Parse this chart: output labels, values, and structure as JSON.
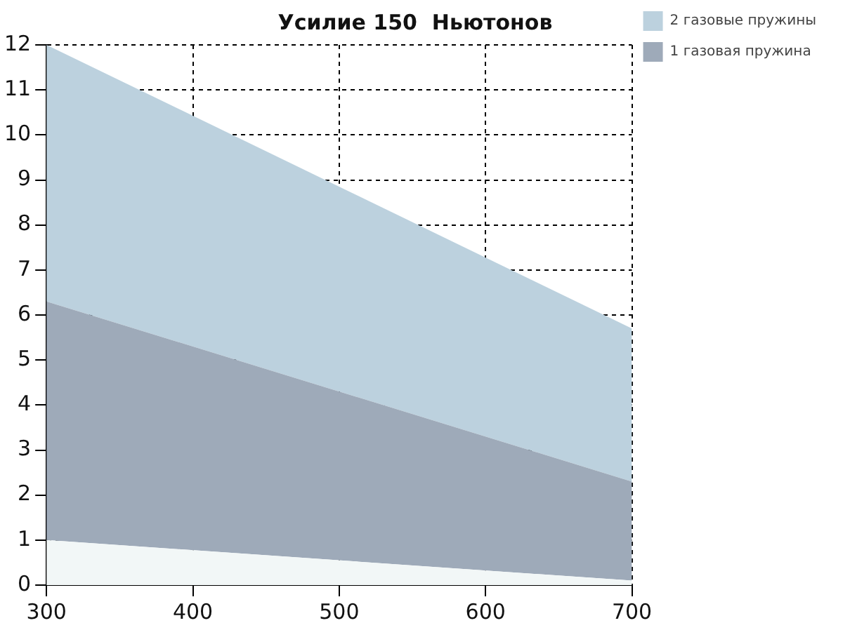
{
  "chart_data": {
    "type": "area",
    "title": "Усилие 150  Ньютонов",
    "x": [
      300,
      700
    ],
    "stacked": true,
    "series": [
      {
        "color": "#f2f7f7",
        "values": [
          1.0,
          0.1
        ]
      },
      {
        "name": "1 газовая пружина",
        "color": "#9eaab9",
        "values": [
          5.3,
          2.2
        ]
      },
      {
        "name": "2 газовые пружины",
        "color": "#bcd1de",
        "values": [
          5.7,
          3.4
        ]
      }
    ],
    "xlim": [
      300,
      700
    ],
    "xticks": [
      300,
      400,
      500,
      600,
      700
    ],
    "ylim": [
      0,
      12
    ],
    "yticks": [
      0,
      1,
      2,
      3,
      4,
      5,
      6,
      7,
      8,
      9,
      10,
      11,
      12
    ],
    "grid": true,
    "line_style": "dashed",
    "legend": "top right",
    "marker": "none"
  }
}
